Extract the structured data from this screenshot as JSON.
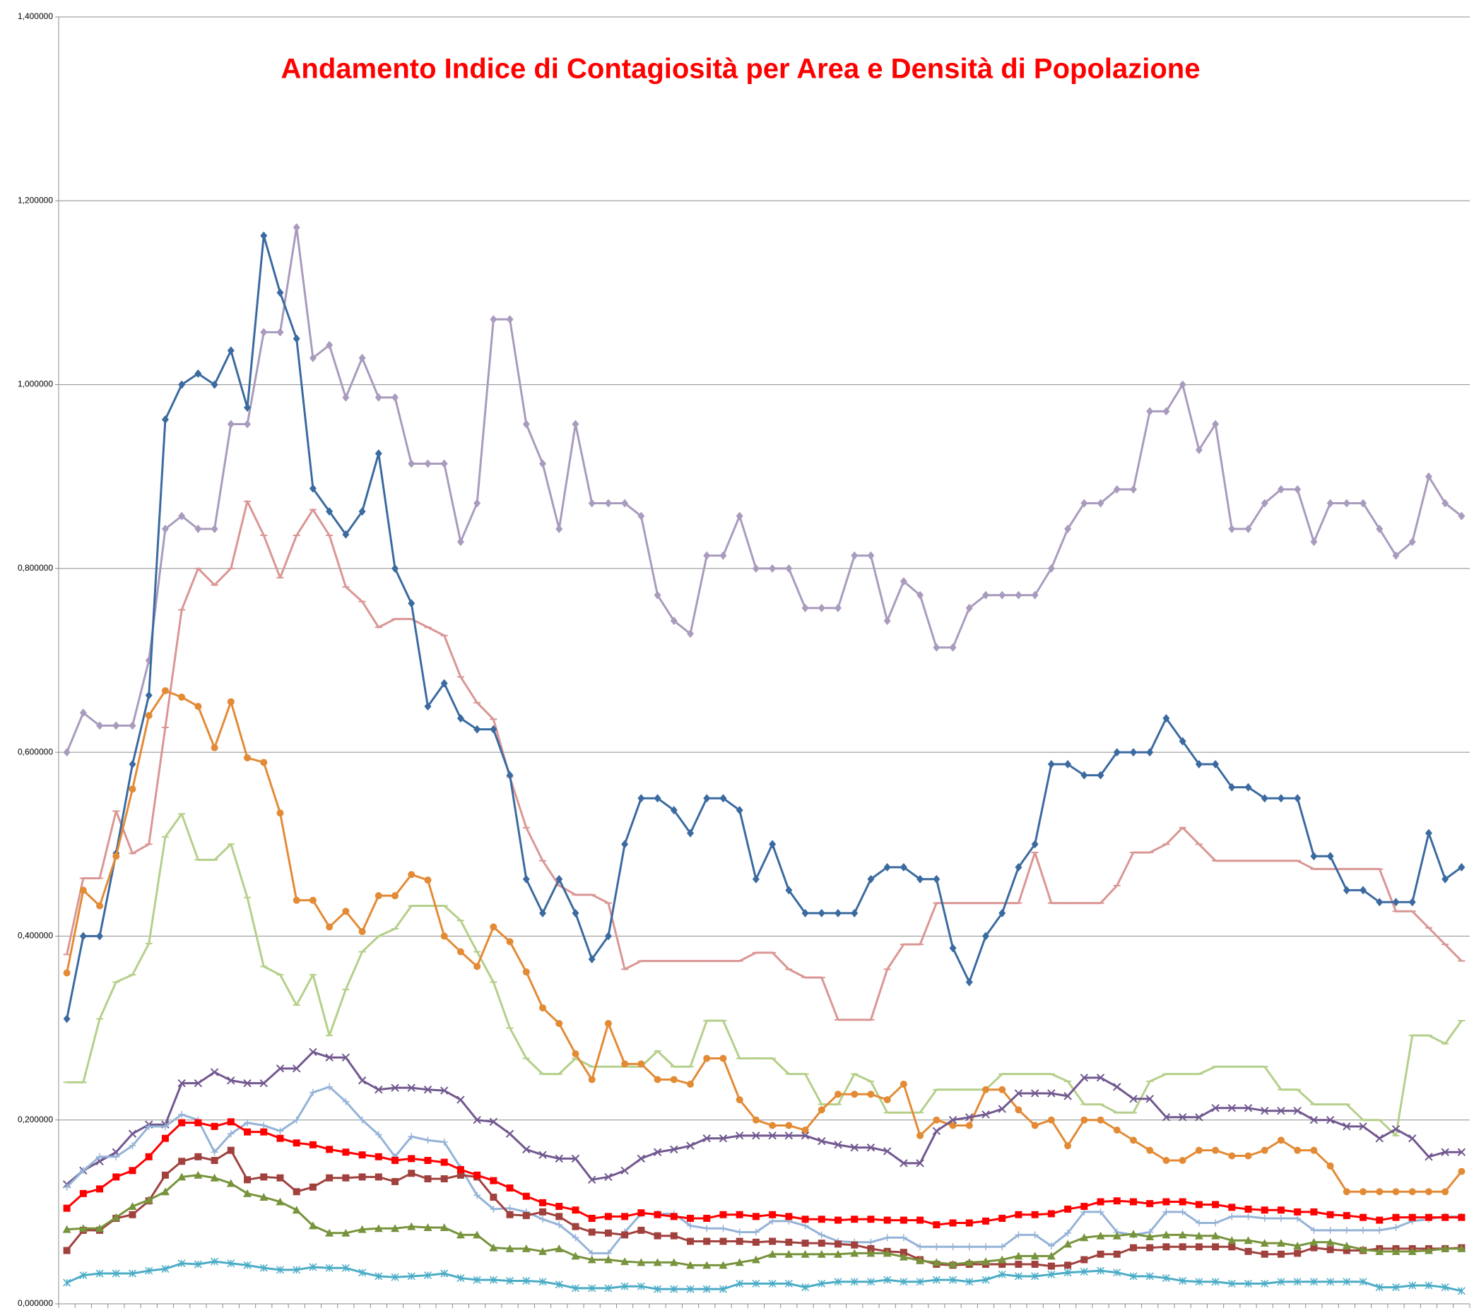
{
  "chart_data": {
    "type": "line",
    "title": "Andamento Indice di Contagiosità per Area e Densità di Popolazione",
    "categories": [
      null,
      null,
      null,
      null,
      null,
      null,
      null,
      null,
      null,
      null,
      null,
      null,
      null,
      null,
      null,
      null,
      null,
      null,
      null,
      null,
      null,
      null,
      null,
      null,
      null,
      null,
      null,
      null,
      null,
      null,
      null,
      null,
      null,
      null,
      null,
      null,
      null,
      null,
      null,
      null,
      null,
      null,
      null,
      null,
      null,
      null,
      null,
      null,
      null,
      null,
      null,
      null,
      null,
      null,
      null,
      null,
      null,
      null,
      null,
      null,
      null,
      null,
      null,
      null,
      null,
      null,
      null,
      null,
      null,
      null,
      null,
      null,
      null,
      null,
      null,
      null,
      null,
      null,
      null,
      null,
      null,
      null,
      null,
      null,
      null,
      null
    ],
    "ylim": [
      0,
      1.4
    ],
    "yticks": [
      {
        "value": 0,
        "label": "0,000000"
      },
      {
        "value": 0.2,
        "label": "0,200000"
      },
      {
        "value": 0.4,
        "label": "0,400000"
      },
      {
        "value": 0.6,
        "label": "0,600000"
      },
      {
        "value": 0.8,
        "label": "0,800000"
      },
      {
        "value": 1.0,
        "label": "1,000000"
      },
      {
        "value": 1.2,
        "label": "1,200000"
      },
      {
        "value": 1.4,
        "label": "1,400000"
      }
    ],
    "grid": true,
    "series": [
      {
        "color": "#a99bbd",
        "marker": "diamond",
        "values": [
          0.6,
          0.643,
          0.629,
          0.629,
          0.629,
          0.7,
          0.843,
          0.857,
          0.843,
          0.843,
          0.957,
          0.957,
          1.057,
          1.057,
          1.171,
          1.029,
          1.043,
          0.986,
          1.029,
          0.986,
          0.986,
          0.914,
          0.914,
          0.914,
          0.829,
          0.871,
          1.071,
          1.071,
          0.957,
          0.914,
          0.843,
          0.957,
          0.871,
          0.871,
          0.871,
          0.857,
          0.771,
          0.743,
          0.729,
          0.814,
          0.814,
          0.857,
          0.8,
          0.8,
          0.8,
          0.757,
          0.757,
          0.757,
          0.814,
          0.814,
          0.743,
          0.786,
          0.771,
          0.714,
          0.714,
          0.757,
          0.771,
          0.771,
          0.771,
          0.771,
          0.8,
          0.843,
          0.871,
          0.871,
          0.886,
          0.886,
          0.971,
          0.971,
          1.0,
          0.929,
          0.957,
          0.843,
          0.843,
          0.871,
          0.886,
          0.886,
          0.829,
          0.871,
          0.871,
          0.871,
          0.843,
          0.814,
          0.829,
          0.9,
          0.871,
          0.857
        ]
      },
      {
        "color": "#d99694",
        "marker": "dash",
        "values": [
          0.38,
          0.463,
          0.463,
          0.536,
          0.49,
          0.5,
          0.627,
          0.755,
          0.8,
          0.782,
          0.8,
          0.873,
          0.836,
          0.79,
          0.836,
          0.864,
          0.836,
          0.78,
          0.764,
          0.736,
          0.745,
          0.745,
          0.736,
          0.727,
          0.682,
          0.654,
          0.636,
          0.573,
          0.518,
          0.482,
          0.455,
          0.445,
          0.445,
          0.436,
          0.364,
          0.373,
          0.373,
          0.373,
          0.373,
          0.373,
          0.373,
          0.373,
          0.382,
          0.382,
          0.364,
          0.355,
          0.355,
          0.309,
          0.309,
          0.309,
          0.364,
          0.391,
          0.391,
          0.436,
          0.436,
          0.436,
          0.436,
          0.436,
          0.436,
          0.491,
          0.436,
          0.436,
          0.436,
          0.436,
          0.455,
          0.491,
          0.491,
          0.5,
          0.518,
          0.5,
          0.482,
          0.482,
          0.482,
          0.482,
          0.482,
          0.482,
          0.473,
          0.473,
          0.473,
          0.473,
          0.473,
          0.427,
          0.427,
          0.409,
          0.391,
          0.373
        ]
      },
      {
        "color": "#b5cf8a",
        "marker": "dash",
        "values": [
          0.241,
          0.241,
          0.31,
          0.35,
          0.358,
          0.392,
          0.508,
          0.533,
          0.483,
          0.483,
          0.5,
          0.442,
          0.367,
          0.358,
          0.325,
          0.358,
          0.292,
          0.342,
          0.383,
          0.4,
          0.408,
          0.433,
          0.433,
          0.433,
          0.417,
          0.383,
          0.35,
          0.3,
          0.267,
          0.25,
          0.25,
          0.267,
          0.258,
          0.258,
          0.258,
          0.258,
          0.275,
          0.258,
          0.258,
          0.308,
          0.308,
          0.267,
          0.267,
          0.267,
          0.25,
          0.25,
          0.217,
          0.217,
          0.25,
          0.242,
          0.208,
          0.208,
          0.208,
          0.233,
          0.233,
          0.233,
          0.233,
          0.25,
          0.25,
          0.25,
          0.25,
          0.242,
          0.217,
          0.217,
          0.208,
          0.208,
          0.242,
          0.25,
          0.25,
          0.25,
          0.258,
          0.258,
          0.258,
          0.258,
          0.233,
          0.233,
          0.217,
          0.217,
          0.217,
          0.2,
          0.2,
          0.183,
          0.292,
          0.292,
          0.283,
          0.308
        ]
      },
      {
        "color": "#3b6aa0",
        "marker": "diamond",
        "values": [
          0.31,
          0.4,
          0.4,
          0.49,
          0.587,
          0.662,
          0.962,
          1.0,
          1.012,
          1.0,
          1.037,
          0.975,
          1.162,
          1.1,
          1.05,
          0.887,
          0.862,
          0.837,
          0.862,
          0.925,
          0.8,
          0.762,
          0.65,
          0.675,
          0.637,
          0.625,
          0.625,
          0.575,
          0.462,
          0.425,
          0.462,
          0.425,
          0.375,
          0.4,
          0.5,
          0.55,
          0.55,
          0.537,
          0.512,
          0.55,
          0.55,
          0.537,
          0.462,
          0.5,
          0.45,
          0.425,
          0.425,
          0.425,
          0.425,
          0.462,
          0.475,
          0.475,
          0.462,
          0.462,
          0.387,
          0.35,
          0.4,
          0.425,
          0.475,
          0.5,
          0.587,
          0.587,
          0.575,
          0.575,
          0.6,
          0.6,
          0.6,
          0.637,
          0.612,
          0.587,
          0.587,
          0.562,
          0.562,
          0.55,
          0.55,
          0.55,
          0.487,
          0.487,
          0.45,
          0.45,
          0.437,
          0.437,
          0.437,
          0.512,
          0.462,
          0.475
        ]
      },
      {
        "color": "#e38a35",
        "marker": "circle",
        "values": [
          0.36,
          0.45,
          0.433,
          0.487,
          0.56,
          0.64,
          0.667,
          0.66,
          0.65,
          0.605,
          0.655,
          0.594,
          0.589,
          0.534,
          0.439,
          0.439,
          0.41,
          0.427,
          0.405,
          0.444,
          0.444,
          0.467,
          0.461,
          0.4,
          0.383,
          0.367,
          0.41,
          0.394,
          0.361,
          0.322,
          0.305,
          0.272,
          0.244,
          0.305,
          0.261,
          0.261,
          0.244,
          0.244,
          0.239,
          0.267,
          0.267,
          0.222,
          0.2,
          0.194,
          0.194,
          0.189,
          0.211,
          0.228,
          0.228,
          0.228,
          0.222,
          0.239,
          0.183,
          0.2,
          0.194,
          0.194,
          0.233,
          0.233,
          0.211,
          0.194,
          0.2,
          0.172,
          0.2,
          0.2,
          0.189,
          0.178,
          0.167,
          0.156,
          0.156,
          0.167,
          0.167,
          0.161,
          0.161,
          0.167,
          0.178,
          0.167,
          0.167,
          0.15,
          0.122,
          0.122,
          0.122,
          0.122,
          0.122,
          0.122,
          0.122,
          0.144
        ]
      },
      {
        "color": "#71588f",
        "marker": "cross",
        "values": [
          0.13,
          0.145,
          0.155,
          0.165,
          0.185,
          0.195,
          0.195,
          0.24,
          0.24,
          0.252,
          0.243,
          0.24,
          0.24,
          0.256,
          0.256,
          0.274,
          0.268,
          0.268,
          0.243,
          0.233,
          0.235,
          0.235,
          0.233,
          0.232,
          0.222,
          0.2,
          0.198,
          0.185,
          0.168,
          0.162,
          0.158,
          0.158,
          0.135,
          0.138,
          0.145,
          0.158,
          0.165,
          0.168,
          0.172,
          0.18,
          0.18,
          0.183,
          0.183,
          0.183,
          0.183,
          0.183,
          0.177,
          0.173,
          0.17,
          0.17,
          0.166,
          0.153,
          0.153,
          0.188,
          0.2,
          0.203,
          0.206,
          0.212,
          0.229,
          0.229,
          0.229,
          0.226,
          0.246,
          0.246,
          0.236,
          0.223,
          0.223,
          0.203,
          0.203,
          0.203,
          0.213,
          0.213,
          0.213,
          0.21,
          0.21,
          0.21,
          0.2,
          0.2,
          0.193,
          0.193,
          0.18,
          0.19,
          0.18,
          0.16,
          0.165,
          0.165
        ]
      },
      {
        "color": "#95b3d7",
        "marker": "plus",
        "values": [
          0.127,
          0.145,
          0.16,
          0.16,
          0.172,
          0.193,
          0.193,
          0.206,
          0.2,
          0.165,
          0.185,
          0.197,
          0.194,
          0.188,
          0.2,
          0.23,
          0.236,
          0.22,
          0.2,
          0.184,
          0.16,
          0.182,
          0.178,
          0.176,
          0.148,
          0.118,
          0.103,
          0.104,
          0.1,
          0.092,
          0.086,
          0.072,
          0.055,
          0.055,
          0.078,
          0.098,
          0.098,
          0.098,
          0.085,
          0.082,
          0.082,
          0.078,
          0.078,
          0.09,
          0.09,
          0.085,
          0.075,
          0.068,
          0.067,
          0.067,
          0.072,
          0.072,
          0.062,
          0.062,
          0.062,
          0.062,
          0.062,
          0.062,
          0.075,
          0.075,
          0.063,
          0.077,
          0.1,
          0.1,
          0.078,
          0.075,
          0.078,
          0.1,
          0.1,
          0.088,
          0.088,
          0.095,
          0.095,
          0.093,
          0.093,
          0.093,
          0.08,
          0.08,
          0.08,
          0.08,
          0.08,
          0.083,
          0.09,
          0.092,
          0.095,
          0.095
        ]
      },
      {
        "color": "#a0413e",
        "marker": "square",
        "values": [
          0.058,
          0.08,
          0.08,
          0.093,
          0.097,
          0.112,
          0.14,
          0.155,
          0.16,
          0.156,
          0.167,
          0.135,
          0.138,
          0.137,
          0.122,
          0.127,
          0.137,
          0.137,
          0.138,
          0.138,
          0.133,
          0.142,
          0.136,
          0.136,
          0.14,
          0.138,
          0.116,
          0.097,
          0.096,
          0.1,
          0.095,
          0.084,
          0.078,
          0.077,
          0.075,
          0.08,
          0.074,
          0.074,
          0.068,
          0.068,
          0.068,
          0.068,
          0.067,
          0.068,
          0.067,
          0.066,
          0.066,
          0.065,
          0.064,
          0.06,
          0.057,
          0.056,
          0.048,
          0.043,
          0.042,
          0.043,
          0.043,
          0.043,
          0.043,
          0.043,
          0.041,
          0.042,
          0.048,
          0.054,
          0.054,
          0.061,
          0.061,
          0.062,
          0.062,
          0.062,
          0.062,
          0.062,
          0.057,
          0.054,
          0.054,
          0.055,
          0.061,
          0.059,
          0.058,
          0.058,
          0.06,
          0.06,
          0.06,
          0.06,
          0.06,
          0.061
        ]
      },
      {
        "color": "#77933c",
        "marker": "triangle",
        "values": [
          0.081,
          0.082,
          0.082,
          0.094,
          0.106,
          0.113,
          0.122,
          0.138,
          0.14,
          0.137,
          0.131,
          0.12,
          0.116,
          0.111,
          0.102,
          0.085,
          0.077,
          0.077,
          0.081,
          0.082,
          0.082,
          0.084,
          0.083,
          0.083,
          0.075,
          0.075,
          0.061,
          0.06,
          0.06,
          0.057,
          0.06,
          0.052,
          0.048,
          0.048,
          0.046,
          0.045,
          0.045,
          0.045,
          0.042,
          0.042,
          0.042,
          0.045,
          0.048,
          0.054,
          0.054,
          0.054,
          0.054,
          0.054,
          0.055,
          0.055,
          0.055,
          0.051,
          0.047,
          0.045,
          0.043,
          0.045,
          0.046,
          0.048,
          0.052,
          0.052,
          0.052,
          0.065,
          0.072,
          0.074,
          0.074,
          0.076,
          0.073,
          0.075,
          0.075,
          0.074,
          0.074,
          0.069,
          0.069,
          0.066,
          0.066,
          0.063,
          0.067,
          0.067,
          0.063,
          0.059,
          0.057,
          0.057,
          0.057,
          0.058,
          0.06,
          0.06
        ]
      },
      {
        "color": "#ff0000",
        "marker": "square",
        "values": [
          0.104,
          0.12,
          0.125,
          0.138,
          0.145,
          0.16,
          0.18,
          0.197,
          0.197,
          0.193,
          0.198,
          0.187,
          0.187,
          0.18,
          0.175,
          0.173,
          0.168,
          0.165,
          0.162,
          0.16,
          0.156,
          0.158,
          0.156,
          0.154,
          0.146,
          0.14,
          0.134,
          0.126,
          0.117,
          0.11,
          0.106,
          0.102,
          0.093,
          0.095,
          0.095,
          0.099,
          0.097,
          0.095,
          0.093,
          0.093,
          0.097,
          0.097,
          0.095,
          0.097,
          0.095,
          0.092,
          0.092,
          0.091,
          0.092,
          0.092,
          0.091,
          0.091,
          0.091,
          0.086,
          0.088,
          0.088,
          0.09,
          0.093,
          0.097,
          0.097,
          0.098,
          0.103,
          0.106,
          0.111,
          0.112,
          0.111,
          0.109,
          0.111,
          0.111,
          0.108,
          0.108,
          0.105,
          0.103,
          0.102,
          0.102,
          0.1,
          0.1,
          0.097,
          0.096,
          0.094,
          0.091,
          0.094,
          0.094,
          0.094,
          0.094,
          0.094
        ]
      },
      {
        "color": "#4bacc6",
        "marker": "star",
        "values": [
          0.023,
          0.031,
          0.033,
          0.033,
          0.033,
          0.036,
          0.038,
          0.044,
          0.043,
          0.046,
          0.044,
          0.042,
          0.039,
          0.037,
          0.037,
          0.04,
          0.039,
          0.039,
          0.034,
          0.03,
          0.029,
          0.03,
          0.031,
          0.033,
          0.028,
          0.026,
          0.026,
          0.025,
          0.025,
          0.024,
          0.021,
          0.017,
          0.017,
          0.017,
          0.019,
          0.019,
          0.016,
          0.016,
          0.016,
          0.016,
          0.016,
          0.022,
          0.022,
          0.022,
          0.022,
          0.018,
          0.022,
          0.024,
          0.024,
          0.024,
          0.026,
          0.024,
          0.024,
          0.026,
          0.026,
          0.024,
          0.026,
          0.032,
          0.03,
          0.03,
          0.032,
          0.034,
          0.035,
          0.036,
          0.034,
          0.03,
          0.03,
          0.028,
          0.025,
          0.024,
          0.024,
          0.022,
          0.022,
          0.022,
          0.024,
          0.024,
          0.024,
          0.024,
          0.024,
          0.024,
          0.018,
          0.018,
          0.02,
          0.02,
          0.018,
          0.014
        ]
      }
    ]
  }
}
